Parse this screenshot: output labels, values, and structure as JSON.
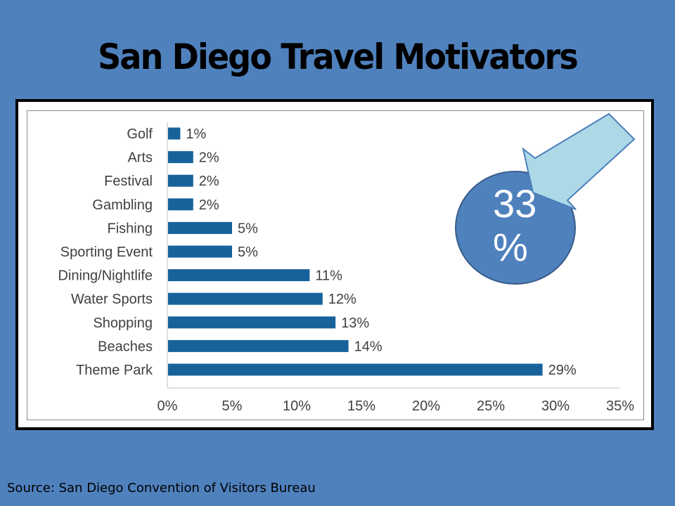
{
  "slide": {
    "title": "San Diego Travel Motivators",
    "callout_text": "33 %",
    "source": "Source: San Diego Convention of Visitors Bureau"
  },
  "colors": {
    "background": "#4f81bd",
    "bar": "#17629a",
    "callout_fill": "#4f81bd",
    "arrow_fill": "#add8e6"
  },
  "chart_data": {
    "type": "bar",
    "orientation": "horizontal",
    "categories": [
      "Golf",
      "Arts",
      "Festival",
      "Gambling",
      "Fishing",
      "Sporting Event",
      "Dining/Nightlife",
      "Water Sports",
      "Shopping",
      "Beaches",
      "Theme Park"
    ],
    "values": [
      1,
      2,
      2,
      2,
      5,
      5,
      11,
      12,
      13,
      14,
      29
    ],
    "data_labels": [
      "1%",
      "2%",
      "2%",
      "2%",
      "5%",
      "5%",
      "11%",
      "12%",
      "13%",
      "14%",
      "29%"
    ],
    "x_ticks": [
      "0%",
      "5%",
      "10%",
      "15%",
      "20%",
      "25%",
      "30%",
      "35%"
    ],
    "xlim": [
      0,
      35
    ],
    "grid": false,
    "legend": "none",
    "title": "",
    "xlabel": "",
    "ylabel": ""
  }
}
